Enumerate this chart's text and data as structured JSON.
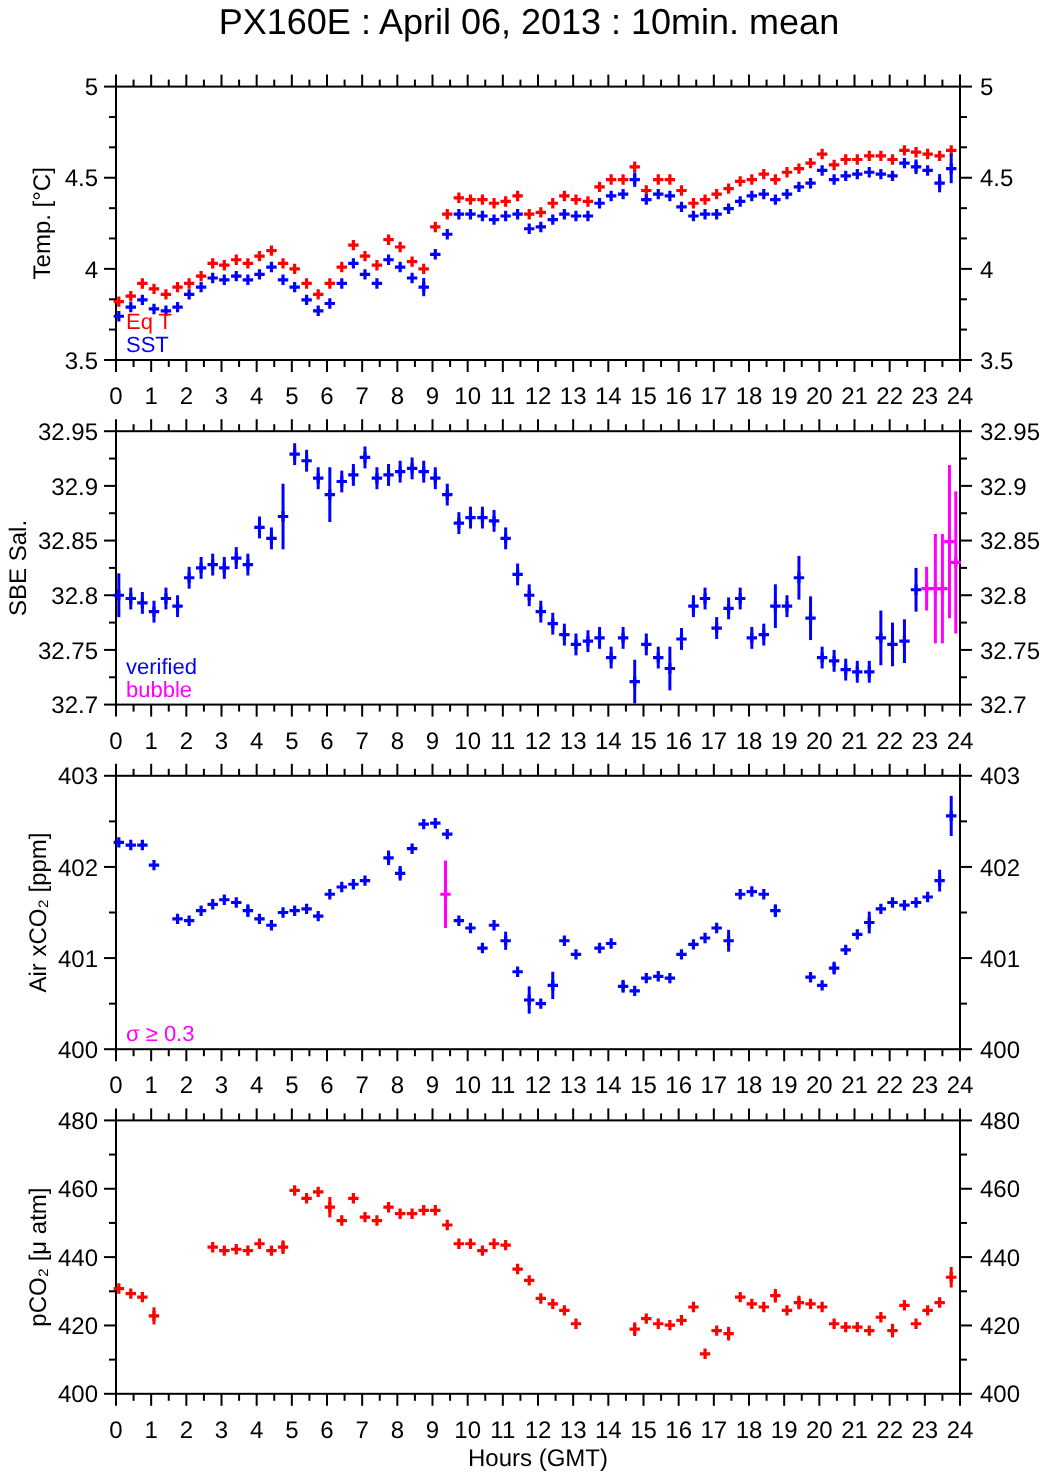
{
  "chart_data": [
    {
      "type": "scatter",
      "title": "PX160E : April 06, 2013 : 10min. mean",
      "ylabel": "Temp. [°C]",
      "marker": "cross",
      "x": [
        0.08,
        0.42,
        0.75,
        1.08,
        1.42,
        1.75,
        2.08,
        2.42,
        2.75,
        3.08,
        3.42,
        3.75,
        4.08,
        4.42,
        4.75,
        5.08,
        5.42,
        5.75,
        6.08,
        6.42,
        6.75,
        7.08,
        7.42,
        7.75,
        8.08,
        8.42,
        8.75,
        9.08,
        9.42,
        9.75,
        10.08,
        10.42,
        10.75,
        11.08,
        11.42,
        11.75,
        12.08,
        12.42,
        12.75,
        13.08,
        13.42,
        13.75,
        14.08,
        14.42,
        14.75,
        15.08,
        15.42,
        15.75,
        16.08,
        16.42,
        16.75,
        17.08,
        17.42,
        17.75,
        18.08,
        18.42,
        18.75,
        19.08,
        19.42,
        19.75,
        20.08,
        20.42,
        20.75,
        21.08,
        21.42,
        21.75,
        22.08,
        22.42,
        22.75,
        23.08,
        23.42,
        23.75
      ],
      "series": [
        {
          "name": "Eq T",
          "color": "#ff0000",
          "values": [
            3.82,
            3.85,
            3.92,
            3.89,
            3.86,
            3.9,
            3.92,
            3.96,
            4.03,
            4.02,
            4.05,
            4.03,
            4.07,
            4.1,
            4.03,
            4.0,
            3.92,
            3.86,
            3.92,
            4.01,
            4.13,
            4.07,
            4.02,
            4.16,
            4.12,
            4.04,
            4.0,
            4.23,
            4.3,
            4.39,
            4.38,
            4.38,
            4.36,
            4.37,
            4.4,
            4.3,
            4.31,
            4.36,
            4.4,
            4.38,
            4.37,
            4.45,
            4.49,
            4.49,
            4.56,
            4.43,
            4.49,
            4.49,
            4.43,
            4.36,
            4.38,
            4.41,
            4.44,
            4.48,
            4.49,
            4.52,
            4.49,
            4.53,
            4.55,
            4.58,
            4.63,
            4.57,
            4.6,
            4.6,
            4.62,
            4.62,
            4.6,
            4.65,
            4.64,
            4.63,
            4.62,
            4.65
          ]
        },
        {
          "name": "SST",
          "color": "#0000ff",
          "values": [
            3.74,
            3.79,
            3.83,
            3.78,
            3.77,
            3.79,
            3.86,
            3.9,
            3.95,
            3.94,
            3.96,
            3.94,
            3.97,
            4.01,
            3.94,
            3.9,
            3.83,
            3.77,
            3.81,
            3.92,
            4.03,
            3.97,
            3.92,
            4.05,
            4.01,
            3.95,
            3.9,
            4.08,
            4.19,
            4.3,
            4.3,
            4.29,
            4.27,
            4.29,
            4.3,
            4.22,
            4.23,
            4.27,
            4.3,
            4.29,
            4.29,
            4.36,
            4.4,
            4.41,
            4.49,
            4.38,
            4.41,
            4.4,
            4.34,
            4.29,
            4.3,
            4.3,
            4.33,
            4.37,
            4.4,
            4.41,
            4.38,
            4.41,
            4.45,
            4.47,
            4.54,
            4.49,
            4.51,
            4.52,
            4.53,
            4.52,
            4.51,
            4.58,
            4.56,
            4.54,
            4.47,
            4.55
          ],
          "errors": [
            null,
            null,
            null,
            null,
            null,
            null,
            null,
            null,
            null,
            null,
            null,
            null,
            null,
            null,
            null,
            null,
            null,
            null,
            null,
            null,
            null,
            null,
            null,
            null,
            null,
            null,
            0.05,
            null,
            null,
            null,
            null,
            null,
            null,
            null,
            null,
            null,
            null,
            null,
            null,
            null,
            null,
            null,
            null,
            null,
            0.04,
            null,
            null,
            null,
            null,
            null,
            null,
            null,
            null,
            null,
            null,
            null,
            null,
            null,
            null,
            null,
            null,
            null,
            null,
            null,
            null,
            null,
            null,
            null,
            0.04,
            null,
            0.05,
            0.08
          ]
        }
      ],
      "xlim": [
        0,
        24
      ],
      "xticks": [
        0,
        {
          "value": 0.5,
          "label": null
        },
        1,
        {
          "value": 1.5,
          "label": null
        },
        2,
        {
          "value": 2.5,
          "label": null
        },
        3,
        {
          "value": 3.5,
          "label": null
        },
        4,
        {
          "value": 4.5,
          "label": null
        },
        5,
        {
          "value": 5.5,
          "label": null
        },
        6,
        {
          "value": 6.5,
          "label": null
        },
        7,
        {
          "value": 7.5,
          "label": null
        },
        8,
        {
          "value": 8.5,
          "label": null
        },
        9,
        {
          "value": 9.5,
          "label": null
        },
        10,
        {
          "value": 10.5,
          "label": null
        },
        11,
        {
          "value": 11.5,
          "label": null
        },
        12,
        {
          "value": 12.5,
          "label": null
        },
        13,
        {
          "value": 13.5,
          "label": null
        },
        14,
        {
          "value": 14.5,
          "label": null
        },
        15,
        {
          "value": 15.5,
          "label": null
        },
        16,
        {
          "value": 16.5,
          "label": null
        },
        17,
        {
          "value": 17.5,
          "label": null
        },
        18,
        {
          "value": 18.5,
          "label": null
        },
        19,
        {
          "value": 19.5,
          "label": null
        },
        20,
        {
          "value": 20.5,
          "label": null
        },
        21,
        {
          "value": 21.5,
          "label": null
        },
        22,
        {
          "value": 22.5,
          "label": null
        },
        23,
        {
          "value": 23.5,
          "label": null
        },
        24
      ],
      "ylim": [
        3.5,
        5
      ],
      "yticks": [
        3.5,
        {
          "value": 3.667,
          "label": null
        },
        {
          "value": 3.833,
          "label": null
        },
        4,
        {
          "value": 4.167,
          "label": null
        },
        {
          "value": 4.333,
          "label": null
        },
        4.5,
        {
          "value": 4.667,
          "label": null
        },
        {
          "value": 4.833,
          "label": null
        },
        5
      ],
      "y2lim": [
        3.5,
        5
      ],
      "y2ticks": [
        3.5,
        {
          "value": 3.667,
          "label": null
        },
        {
          "value": 3.833,
          "label": null
        },
        4,
        {
          "value": 4.167,
          "label": null
        },
        {
          "value": 4.333,
          "label": null
        },
        4.5,
        {
          "value": 4.667,
          "label": null
        },
        {
          "value": 4.833,
          "label": null
        },
        5
      ]
    },
    {
      "type": "scatter",
      "ylabel": "SBE Sal.",
      "marker": "cross",
      "x": [
        0.08,
        0.42,
        0.75,
        1.08,
        1.42,
        1.75,
        2.08,
        2.42,
        2.75,
        3.08,
        3.42,
        3.75,
        4.08,
        4.42,
        4.75,
        5.08,
        5.42,
        5.75,
        6.08,
        6.42,
        6.75,
        7.08,
        7.42,
        7.75,
        8.08,
        8.42,
        8.75,
        9.08,
        9.42,
        9.75,
        10.08,
        10.42,
        10.75,
        11.08,
        11.42,
        11.75,
        12.08,
        12.42,
        12.75,
        13.08,
        13.42,
        13.75,
        14.08,
        14.42,
        14.75,
        15.08,
        15.42,
        15.75,
        16.08,
        16.42,
        16.75,
        17.08,
        17.42,
        17.75,
        18.08,
        18.42,
        18.75,
        19.08,
        19.42,
        19.75,
        20.08,
        20.42,
        20.75,
        21.08,
        21.42,
        21.75,
        22.08,
        22.42,
        22.75
      ],
      "series": [
        {
          "name": "verified",
          "color": "#0000ff",
          "values": [
            32.8,
            32.797,
            32.793,
            32.785,
            32.797,
            32.79,
            32.816,
            32.825,
            32.828,
            32.825,
            32.834,
            32.828,
            32.862,
            32.852,
            32.872,
            32.929,
            32.923,
            32.907,
            32.892,
            32.904,
            32.91,
            32.926,
            32.907,
            32.91,
            32.913,
            32.916,
            32.913,
            32.907,
            32.892,
            32.866,
            32.871,
            32.871,
            32.868,
            32.852,
            32.819,
            32.8,
            32.785,
            32.774,
            32.764,
            32.755,
            32.758,
            32.761,
            32.743,
            32.761,
            32.721,
            32.755,
            32.743,
            32.733,
            32.76,
            32.79,
            32.797,
            32.77,
            32.788,
            32.797,
            32.761,
            32.764,
            32.79,
            32.79,
            32.816,
            32.779,
            32.743,
            32.74,
            32.732,
            32.73,
            32.73,
            32.761,
            32.755,
            32.758,
            32.805
          ],
          "errors": [
            0.02,
            0.01,
            0.01,
            0.01,
            0.01,
            0.01,
            0.01,
            0.01,
            0.01,
            0.01,
            0.01,
            0.01,
            0.01,
            0.01,
            0.03,
            0.01,
            0.01,
            0.01,
            0.025,
            0.01,
            0.01,
            0.01,
            0.01,
            0.01,
            0.01,
            0.01,
            0.01,
            0.01,
            0.01,
            0.01,
            0.01,
            0.01,
            0.01,
            0.01,
            0.01,
            0.01,
            0.01,
            0.01,
            0.01,
            0.01,
            0.01,
            0.01,
            0.01,
            0.01,
            0.02,
            0.01,
            0.01,
            0.02,
            0.01,
            0.01,
            0.01,
            0.01,
            0.01,
            0.01,
            0.01,
            0.01,
            0.02,
            0.01,
            0.02,
            0.02,
            0.01,
            0.01,
            0.01,
            0.01,
            0.01,
            0.025,
            0.02,
            0.02,
            0.02
          ]
        },
        {
          "name": "bubble",
          "color": "#ff00ff",
          "x": [
            23.05,
            23.3,
            23.5,
            23.7,
            23.88
          ],
          "values": [
            32.806,
            32.806,
            32.806,
            32.849,
            32.83
          ],
          "errors": [
            0.02,
            0.05,
            0.05,
            0.07,
            0.065
          ]
        }
      ],
      "xlim": [
        0,
        24
      ],
      "xticks": [
        0,
        {
          "value": 0.5,
          "label": null
        },
        1,
        {
          "value": 1.5,
          "label": null
        },
        2,
        {
          "value": 2.5,
          "label": null
        },
        3,
        {
          "value": 3.5,
          "label": null
        },
        4,
        {
          "value": 4.5,
          "label": null
        },
        5,
        {
          "value": 5.5,
          "label": null
        },
        6,
        {
          "value": 6.5,
          "label": null
        },
        7,
        {
          "value": 7.5,
          "label": null
        },
        8,
        {
          "value": 8.5,
          "label": null
        },
        9,
        {
          "value": 9.5,
          "label": null
        },
        10,
        {
          "value": 10.5,
          "label": null
        },
        11,
        {
          "value": 11.5,
          "label": null
        },
        12,
        {
          "value": 12.5,
          "label": null
        },
        13,
        {
          "value": 13.5,
          "label": null
        },
        14,
        {
          "value": 14.5,
          "label": null
        },
        15,
        {
          "value": 15.5,
          "label": null
        },
        16,
        {
          "value": 16.5,
          "label": null
        },
        17,
        {
          "value": 17.5,
          "label": null
        },
        18,
        {
          "value": 18.5,
          "label": null
        },
        19,
        {
          "value": 19.5,
          "label": null
        },
        20,
        {
          "value": 20.5,
          "label": null
        },
        21,
        {
          "value": 21.5,
          "label": null
        },
        22,
        {
          "value": 22.5,
          "label": null
        },
        23,
        {
          "value": 23.5,
          "label": null
        },
        24
      ],
      "ylim": [
        32.7,
        32.95
      ],
      "yticks": [
        32.7,
        {
          "value": 32.725,
          "label": null
        },
        32.75,
        {
          "value": 32.775,
          "label": null
        },
        32.8,
        {
          "value": 32.825,
          "label": null
        },
        32.85,
        {
          "value": 32.875,
          "label": null
        },
        32.9,
        {
          "value": 32.925,
          "label": null
        },
        32.95
      ],
      "y2lim": [
        32.7,
        32.95
      ],
      "y2ticks": [
        32.7,
        {
          "value": 32.725,
          "label": null
        },
        32.75,
        {
          "value": 32.775,
          "label": null
        },
        32.8,
        {
          "value": 32.825,
          "label": null
        },
        32.85,
        {
          "value": 32.875,
          "label": null
        },
        32.9,
        {
          "value": 32.925,
          "label": null
        },
        32.95
      ]
    },
    {
      "type": "scatter",
      "ylabel": "Air xCO₂ [ppm]",
      "marker": "cross",
      "x": [
        0.08,
        0.42,
        0.75,
        1.08,
        1.75,
        2.08,
        2.42,
        2.75,
        3.08,
        3.42,
        3.75,
        4.08,
        4.42,
        4.75,
        5.08,
        5.42,
        5.75,
        6.08,
        6.42,
        6.75,
        7.08,
        7.75,
        8.08,
        8.42,
        8.75,
        9.08,
        9.42,
        9.75,
        10.08,
        10.42,
        10.75,
        11.08,
        11.42,
        11.75,
        12.08,
        12.42,
        12.75,
        13.08,
        13.75,
        14.08,
        14.42,
        14.75,
        15.08,
        15.42,
        15.75,
        16.08,
        16.42,
        16.75,
        17.08,
        17.42,
        17.75,
        18.08,
        18.42,
        18.75,
        19.75,
        20.08,
        20.42,
        20.75,
        21.08,
        21.42,
        21.75,
        22.08,
        22.42,
        22.75,
        23.08,
        23.42,
        23.75
      ],
      "series": [
        {
          "color": "#0000ff",
          "values": [
            402.27,
            402.24,
            402.24,
            402.02,
            401.43,
            401.41,
            401.52,
            401.59,
            401.64,
            401.61,
            401.52,
            401.43,
            401.36,
            401.5,
            401.52,
            401.54,
            401.46,
            401.7,
            401.78,
            401.81,
            401.85,
            402.1,
            401.93,
            402.2,
            402.47,
            402.48,
            402.36,
            401.41,
            401.33,
            401.11,
            401.36,
            401.19,
            400.85,
            400.54,
            400.5,
            400.7,
            401.19,
            401.04,
            401.11,
            401.16,
            400.69,
            400.64,
            400.78,
            400.8,
            400.78,
            401.04,
            401.15,
            401.22,
            401.33,
            401.19,
            401.7,
            401.73,
            401.7,
            401.52,
            400.79,
            400.7,
            400.89,
            401.09,
            401.26,
            401.39,
            401.54,
            401.61,
            401.58,
            401.61,
            401.67,
            401.85,
            402.56
          ],
          "errors": [
            null,
            null,
            null,
            null,
            null,
            null,
            null,
            null,
            null,
            null,
            0.07,
            null,
            null,
            null,
            null,
            null,
            null,
            null,
            null,
            null,
            null,
            0.08,
            0.08,
            null,
            null,
            null,
            null,
            null,
            null,
            null,
            null,
            0.1,
            null,
            0.15,
            null,
            0.15,
            null,
            null,
            null,
            null,
            0.07,
            null,
            null,
            null,
            null,
            null,
            null,
            null,
            null,
            0.12,
            null,
            null,
            null,
            0.07,
            null,
            null,
            0.07,
            null,
            null,
            0.12,
            null,
            null,
            null,
            null,
            null,
            0.12,
            0.22
          ]
        },
        {
          "name": "σ ≥ 0.3",
          "color": "#ff00ff",
          "x": [
            9.37
          ],
          "values": [
            401.7
          ],
          "errors": [
            0.37
          ]
        }
      ],
      "xlim": [
        0,
        24
      ],
      "xticks": [
        0,
        {
          "value": 0.5,
          "label": null
        },
        1,
        {
          "value": 1.5,
          "label": null
        },
        2,
        {
          "value": 2.5,
          "label": null
        },
        3,
        {
          "value": 3.5,
          "label": null
        },
        4,
        {
          "value": 4.5,
          "label": null
        },
        5,
        {
          "value": 5.5,
          "label": null
        },
        6,
        {
          "value": 6.5,
          "label": null
        },
        7,
        {
          "value": 7.5,
          "label": null
        },
        8,
        {
          "value": 8.5,
          "label": null
        },
        9,
        {
          "value": 9.5,
          "label": null
        },
        10,
        {
          "value": 10.5,
          "label": null
        },
        11,
        {
          "value": 11.5,
          "label": null
        },
        12,
        {
          "value": 12.5,
          "label": null
        },
        13,
        {
          "value": 13.5,
          "label": null
        },
        14,
        {
          "value": 14.5,
          "label": null
        },
        15,
        {
          "value": 15.5,
          "label": null
        },
        16,
        {
          "value": 16.5,
          "label": null
        },
        17,
        {
          "value": 17.5,
          "label": null
        },
        18,
        {
          "value": 18.5,
          "label": null
        },
        19,
        {
          "value": 19.5,
          "label": null
        },
        20,
        {
          "value": 20.5,
          "label": null
        },
        21,
        {
          "value": 21.5,
          "label": null
        },
        22,
        {
          "value": 22.5,
          "label": null
        },
        23,
        {
          "value": 23.5,
          "label": null
        },
        24
      ],
      "ylim": [
        400,
        403
      ],
      "yticks": [
        400,
        {
          "value": 400.5,
          "label": null
        },
        401,
        {
          "value": 401.5,
          "label": null
        },
        402,
        {
          "value": 402.5,
          "label": null
        },
        403
      ],
      "y2lim": [
        400,
        403
      ],
      "y2ticks": [
        400,
        {
          "value": 400.5,
          "label": null
        },
        401,
        {
          "value": 401.5,
          "label": null
        },
        402,
        {
          "value": 402.5,
          "label": null
        },
        403
      ]
    },
    {
      "type": "scatter",
      "ylabel": "pCO₂ [μ atm]",
      "xlabel": "Hours (GMT)",
      "marker": "cross",
      "x": [
        0.08,
        0.42,
        0.75,
        1.08,
        2.75,
        3.08,
        3.42,
        3.75,
        4.08,
        4.42,
        4.75,
        5.08,
        5.42,
        5.75,
        6.08,
        6.42,
        6.75,
        7.08,
        7.42,
        7.75,
        8.08,
        8.42,
        8.75,
        9.08,
        9.42,
        9.75,
        10.08,
        10.42,
        10.75,
        11.08,
        11.42,
        11.75,
        12.08,
        12.42,
        12.75,
        13.08,
        14.75,
        15.08,
        15.42,
        15.75,
        16.08,
        16.42,
        16.75,
        17.08,
        17.42,
        17.75,
        18.08,
        18.42,
        18.75,
        19.08,
        19.42,
        19.75,
        20.08,
        20.42,
        20.75,
        21.08,
        21.42,
        21.75,
        22.08,
        22.42,
        22.75,
        23.08,
        23.42,
        23.75
      ],
      "series": [
        {
          "color": "#ff0000",
          "values": [
            430.8,
            429.3,
            428.3,
            422.8,
            442.9,
            441.9,
            442.3,
            441.9,
            443.9,
            441.9,
            442.9,
            459.5,
            457.2,
            459.1,
            454.6,
            450.7,
            457.2,
            451.7,
            450.7,
            454.6,
            452.7,
            452.7,
            453.7,
            453.7,
            449.4,
            443.9,
            443.9,
            441.9,
            443.9,
            443.5,
            436.5,
            433.2,
            427.9,
            426.3,
            424.4,
            420.5,
            418.9,
            422.0,
            420.5,
            420.1,
            421.5,
            425.4,
            411.7,
            418.5,
            417.6,
            428.3,
            426.3,
            425.4,
            428.7,
            424.4,
            426.7,
            426.3,
            425.4,
            420.5,
            419.5,
            419.5,
            418.5,
            422.4,
            418.5,
            425.9,
            420.5,
            424.4,
            426.7,
            434.1
          ],
          "errors": [
            null,
            null,
            null,
            2.5,
            null,
            null,
            null,
            null,
            null,
            null,
            2,
            null,
            null,
            null,
            3,
            null,
            null,
            null,
            null,
            null,
            null,
            null,
            null,
            null,
            null,
            null,
            null,
            null,
            null,
            null,
            null,
            null,
            null,
            null,
            null,
            null,
            2,
            null,
            null,
            null,
            null,
            null,
            null,
            null,
            2,
            null,
            null,
            null,
            2,
            null,
            2,
            null,
            null,
            null,
            null,
            null,
            null,
            null,
            2,
            null,
            null,
            null,
            null,
            3
          ]
        }
      ],
      "xlim": [
        0,
        24
      ],
      "xticks": [
        0,
        {
          "value": 0.5,
          "label": null
        },
        1,
        {
          "value": 1.5,
          "label": null
        },
        2,
        {
          "value": 2.5,
          "label": null
        },
        3,
        {
          "value": 3.5,
          "label": null
        },
        4,
        {
          "value": 4.5,
          "label": null
        },
        5,
        {
          "value": 5.5,
          "label": null
        },
        6,
        {
          "value": 6.5,
          "label": null
        },
        7,
        {
          "value": 7.5,
          "label": null
        },
        8,
        {
          "value": 8.5,
          "label": null
        },
        9,
        {
          "value": 9.5,
          "label": null
        },
        10,
        {
          "value": 10.5,
          "label": null
        },
        11,
        {
          "value": 11.5,
          "label": null
        },
        12,
        {
          "value": 12.5,
          "label": null
        },
        13,
        {
          "value": 13.5,
          "label": null
        },
        14,
        {
          "value": 14.5,
          "label": null
        },
        15,
        {
          "value": 15.5,
          "label": null
        },
        16,
        {
          "value": 16.5,
          "label": null
        },
        17,
        {
          "value": 17.5,
          "label": null
        },
        18,
        {
          "value": 18.5,
          "label": null
        },
        19,
        {
          "value": 19.5,
          "label": null
        },
        20,
        {
          "value": 20.5,
          "label": null
        },
        21,
        {
          "value": 21.5,
          "label": null
        },
        22,
        {
          "value": 22.5,
          "label": null
        },
        23,
        {
          "value": 23.5,
          "label": null
        },
        24
      ],
      "ylim": [
        400,
        480
      ],
      "yticks": [
        400,
        {
          "value": 410,
          "label": null
        },
        420,
        {
          "value": 430,
          "label": null
        },
        440,
        {
          "value": 450,
          "label": null
        },
        460,
        {
          "value": 470,
          "label": null
        },
        480
      ],
      "y2lim": [
        400,
        480
      ],
      "y2ticks": [
        400,
        {
          "value": 410,
          "label": null
        },
        420,
        {
          "value": 430,
          "label": null
        },
        440,
        {
          "value": 450,
          "label": null
        },
        460,
        {
          "value": 470,
          "label": null
        },
        480
      ]
    }
  ]
}
